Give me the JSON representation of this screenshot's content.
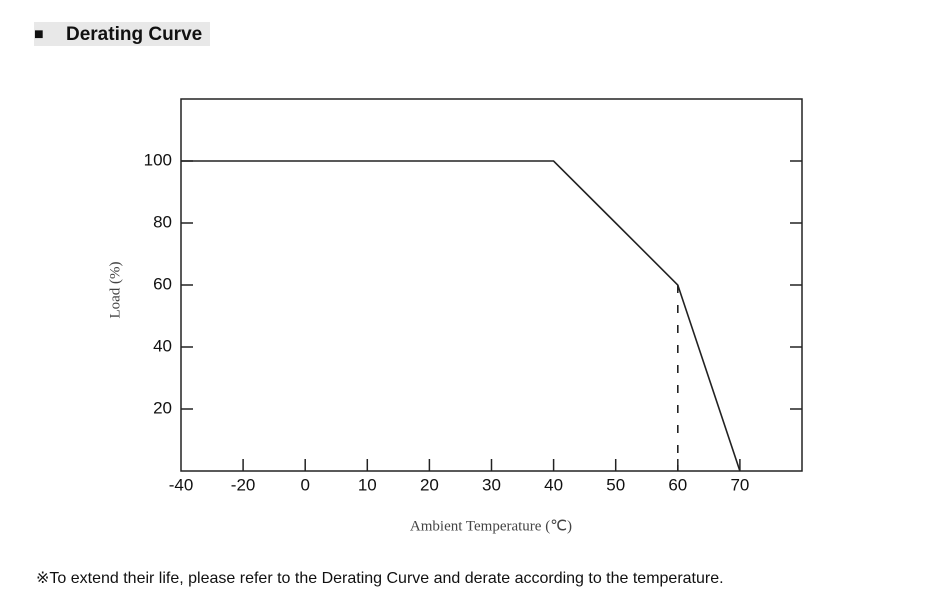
{
  "header": {
    "bullet": "■",
    "title": "Derating Curve"
  },
  "chart_data": {
    "type": "line",
    "xlabel": "Ambient Temperature (℃)",
    "ylabel": "Load (%)",
    "categories": [
      "-40",
      "-20",
      "0",
      "10",
      "20",
      "30",
      "40",
      "50",
      "60",
      "70"
    ],
    "values": [
      100,
      100,
      100,
      100,
      100,
      100,
      100,
      80,
      60,
      0
    ],
    "color": "#222222",
    "ylim": [
      0,
      120
    ],
    "yticks": [
      20,
      40,
      60,
      80,
      100
    ],
    "dashed_drop_index": 8
  },
  "footnote": "※To extend their life, please refer to the Derating Curve and derate according to the temperature."
}
